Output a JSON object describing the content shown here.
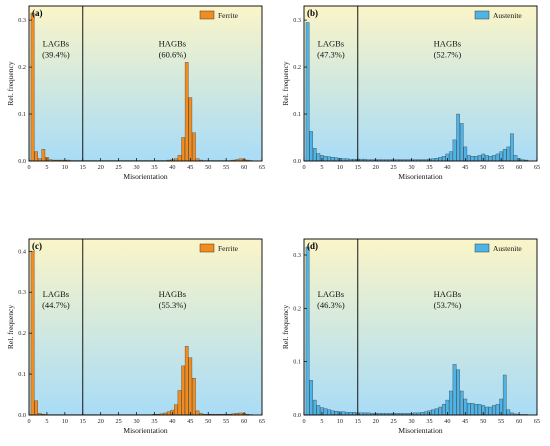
{
  "chart_data": [
    {
      "type": "bar",
      "panel": "(a)",
      "legend": "Ferrite",
      "color": "#f28c1e",
      "xlabel": "Misorientation",
      "ylabel": "Rel. frequency",
      "xlim": [
        0,
        65
      ],
      "ylim": [
        0,
        0.33
      ],
      "xticks": [
        "0",
        "5",
        "10",
        "15",
        "20",
        "25",
        "30",
        "35",
        "40",
        "45",
        "50",
        "55",
        "60",
        "65"
      ],
      "yticks": [
        "0.0",
        "0.1",
        "0.2",
        "0.3"
      ],
      "ytick_values": [
        0,
        0.1,
        0.2,
        0.3
      ],
      "divider": 15,
      "lagb_label": "LAGBs",
      "lagb_pct": "(39.4%)",
      "hagb_label": "HAGBs",
      "hagb_pct": "(60.6%)",
      "x": [
        1,
        2,
        3,
        4,
        5,
        6,
        7,
        8,
        9,
        10,
        11,
        12,
        13,
        14,
        15,
        16,
        17,
        18,
        19,
        20,
        21,
        22,
        23,
        24,
        25,
        26,
        27,
        28,
        29,
        30,
        31,
        32,
        33,
        34,
        35,
        36,
        37,
        38,
        39,
        40,
        41,
        42,
        43,
        44,
        45,
        46,
        47,
        48,
        49,
        50,
        51,
        52,
        53,
        54,
        55,
        56,
        57,
        58,
        59,
        60,
        61,
        62
      ],
      "values": [
        0.315,
        0.02,
        0.005,
        0.025,
        0.008,
        0.003,
        0.002,
        0.002,
        0.002,
        0.002,
        0.002,
        0.001,
        0.001,
        0.001,
        0.001,
        0.001,
        0.001,
        0.001,
        0.001,
        0.001,
        0.001,
        0.001,
        0.001,
        0.001,
        0.001,
        0.001,
        0.001,
        0.001,
        0.001,
        0.001,
        0.001,
        0.001,
        0.001,
        0.001,
        0.001,
        0.001,
        0.001,
        0.001,
        0.002,
        0.003,
        0.005,
        0.012,
        0.05,
        0.21,
        0.135,
        0.06,
        0.005,
        0.002,
        0.001,
        0.001,
        0.001,
        0.001,
        0.001,
        0.001,
        0.001,
        0.001,
        0.002,
        0.003,
        0.005,
        0.004,
        0.002,
        0.001
      ]
    },
    {
      "type": "bar",
      "panel": "(b)",
      "legend": "Austenite",
      "color": "#4eb3e6",
      "xlabel": "Misorientation",
      "ylabel": "Rel. frequency",
      "xlim": [
        0,
        65
      ],
      "ylim": [
        0,
        0.33
      ],
      "xticks": [
        "0",
        "5",
        "10",
        "15",
        "20",
        "25",
        "30",
        "35",
        "40",
        "45",
        "50",
        "55",
        "60",
        "65"
      ],
      "yticks": [
        "0.0",
        "0.1",
        "0.2",
        "0.3"
      ],
      "ytick_values": [
        0,
        0.1,
        0.2,
        0.3
      ],
      "divider": 15,
      "lagb_label": "LAGBs",
      "lagb_pct": "(47.3%)",
      "hagb_label": "HAGBs",
      "hagb_pct": "(52.7%)",
      "x": [
        1,
        2,
        3,
        4,
        5,
        6,
        7,
        8,
        9,
        10,
        11,
        12,
        13,
        14,
        15,
        16,
        17,
        18,
        19,
        20,
        21,
        22,
        23,
        24,
        25,
        26,
        27,
        28,
        29,
        30,
        31,
        32,
        33,
        34,
        35,
        36,
        37,
        38,
        39,
        40,
        41,
        42,
        43,
        44,
        45,
        46,
        47,
        48,
        49,
        50,
        51,
        52,
        53,
        54,
        55,
        56,
        57,
        58,
        59,
        60,
        61,
        62
      ],
      "values": [
        0.295,
        0.063,
        0.027,
        0.016,
        0.012,
        0.01,
        0.009,
        0.008,
        0.007,
        0.006,
        0.005,
        0.005,
        0.004,
        0.004,
        0.004,
        0.004,
        0.004,
        0.003,
        0.003,
        0.003,
        0.003,
        0.003,
        0.003,
        0.003,
        0.003,
        0.003,
        0.003,
        0.003,
        0.003,
        0.003,
        0.003,
        0.003,
        0.003,
        0.003,
        0.004,
        0.005,
        0.006,
        0.008,
        0.01,
        0.015,
        0.02,
        0.045,
        0.1,
        0.08,
        0.03,
        0.012,
        0.01,
        0.01,
        0.012,
        0.015,
        0.012,
        0.01,
        0.012,
        0.015,
        0.02,
        0.025,
        0.03,
        0.058,
        0.012,
        0.005,
        0.003,
        0.002
      ]
    },
    {
      "type": "bar",
      "panel": "(c)",
      "legend": "Ferrite",
      "color": "#f28c1e",
      "xlabel": "Misorientation",
      "ylabel": "Rel. frequency",
      "xlim": [
        0,
        65
      ],
      "ylim": [
        0,
        0.43
      ],
      "xticks": [
        "0",
        "5",
        "10",
        "15",
        "20",
        "25",
        "30",
        "35",
        "40",
        "45",
        "50",
        "55",
        "60",
        "65"
      ],
      "yticks": [
        "0.0",
        "0.1",
        "0.2",
        "0.3",
        "0.4"
      ],
      "ytick_values": [
        0,
        0.1,
        0.2,
        0.3,
        0.4
      ],
      "divider": 15,
      "lagb_label": "LAGBs",
      "lagb_pct": "(44.7%)",
      "hagb_label": "HAGBs",
      "hagb_pct": "(55.3%)",
      "x": [
        1,
        2,
        3,
        4,
        5,
        6,
        7,
        8,
        9,
        10,
        11,
        12,
        13,
        14,
        15,
        16,
        17,
        18,
        19,
        20,
        21,
        22,
        23,
        24,
        25,
        26,
        27,
        28,
        29,
        30,
        31,
        32,
        33,
        34,
        35,
        36,
        37,
        38,
        39,
        40,
        41,
        42,
        43,
        44,
        45,
        46,
        47,
        48,
        49,
        50,
        51,
        52,
        53,
        54,
        55,
        56,
        57,
        58,
        59,
        60,
        61,
        62
      ],
      "values": [
        0.4,
        0.035,
        0.004,
        0.002,
        0.001,
        0.001,
        0.001,
        0.001,
        0.001,
        0.001,
        0.001,
        0.001,
        0.001,
        0.001,
        0.001,
        0.001,
        0.001,
        0.001,
        0.001,
        0.001,
        0.001,
        0.001,
        0.001,
        0.001,
        0.001,
        0.001,
        0.001,
        0.001,
        0.001,
        0.001,
        0.001,
        0.001,
        0.001,
        0.001,
        0.002,
        0.002,
        0.003,
        0.005,
        0.008,
        0.012,
        0.025,
        0.06,
        0.12,
        0.168,
        0.14,
        0.09,
        0.01,
        0.004,
        0.002,
        0.002,
        0.002,
        0.002,
        0.002,
        0.002,
        0.002,
        0.002,
        0.003,
        0.004,
        0.005,
        0.004,
        0.002,
        0.001
      ]
    },
    {
      "type": "bar",
      "panel": "(d)",
      "legend": "Austenite",
      "color": "#4eb3e6",
      "xlabel": "Misorientation",
      "ylabel": "Rel. frequency",
      "xlim": [
        0,
        65
      ],
      "ylim": [
        0,
        0.33
      ],
      "xticks": [
        "0",
        "5",
        "10",
        "15",
        "20",
        "25",
        "30",
        "35",
        "40",
        "45",
        "50",
        "55",
        "60",
        "65"
      ],
      "yticks": [
        "0.0",
        "0.1",
        "0.2",
        "0.3"
      ],
      "ytick_values": [
        0,
        0.1,
        0.2,
        0.3
      ],
      "divider": 15,
      "lagb_label": "LAGBs",
      "lagb_pct": "(46.3%)",
      "hagb_label": "HAGBs",
      "hagb_pct": "(53.7%)",
      "x": [
        1,
        2,
        3,
        4,
        5,
        6,
        7,
        8,
        9,
        10,
        11,
        12,
        13,
        14,
        15,
        16,
        17,
        18,
        19,
        20,
        21,
        22,
        23,
        24,
        25,
        26,
        27,
        28,
        29,
        30,
        31,
        32,
        33,
        34,
        35,
        36,
        37,
        38,
        39,
        40,
        41,
        42,
        43,
        44,
        45,
        46,
        47,
        48,
        49,
        50,
        51,
        52,
        53,
        54,
        55,
        56,
        57,
        58,
        59,
        60,
        61,
        62
      ],
      "values": [
        0.315,
        0.065,
        0.028,
        0.018,
        0.014,
        0.012,
        0.01,
        0.008,
        0.007,
        0.006,
        0.006,
        0.005,
        0.005,
        0.005,
        0.004,
        0.004,
        0.004,
        0.004,
        0.003,
        0.003,
        0.003,
        0.003,
        0.003,
        0.003,
        0.003,
        0.003,
        0.003,
        0.003,
        0.003,
        0.003,
        0.004,
        0.004,
        0.005,
        0.006,
        0.008,
        0.01,
        0.012,
        0.015,
        0.02,
        0.028,
        0.045,
        0.095,
        0.085,
        0.045,
        0.03,
        0.022,
        0.022,
        0.02,
        0.02,
        0.018,
        0.015,
        0.015,
        0.018,
        0.02,
        0.03,
        0.075,
        0.01,
        0.004,
        0.002,
        0.001,
        0.001,
        0.001
      ]
    }
  ]
}
